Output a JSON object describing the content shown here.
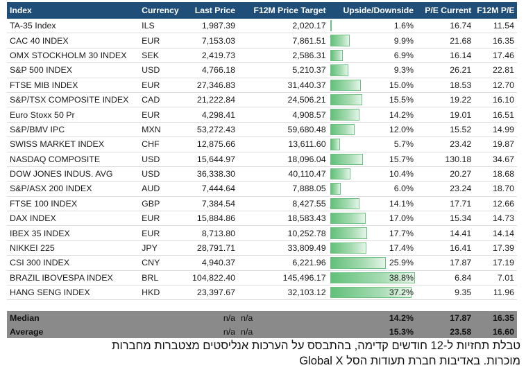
{
  "table": {
    "headers": [
      "Index",
      "Currency",
      "Last Price",
      "F12M Price Target",
      "Upside/Downside",
      "P/E Current",
      "F12M P/E"
    ],
    "rows": [
      {
        "index": "TA-35 Index",
        "currency": "ILS",
        "last": "1,987.39",
        "target": "2,020.17",
        "upside": "1.6%",
        "upside_pct": 1.6,
        "pe": "16.74",
        "fpe": "11.54"
      },
      {
        "index": "CAC 40 INDEX",
        "currency": "EUR",
        "last": "7,153.03",
        "target": "7,861.51",
        "upside": "9.9%",
        "upside_pct": 9.9,
        "pe": "21.68",
        "fpe": "16.35"
      },
      {
        "index": "OMX STOCKHOLM 30 INDEX",
        "currency": "SEK",
        "last": "2,419.73",
        "target": "2,586.31",
        "upside": "6.9%",
        "upside_pct": 6.9,
        "pe": "16.14",
        "fpe": "17.46"
      },
      {
        "index": "S&P 500 INDEX",
        "currency": "USD",
        "last": "4,766.18",
        "target": "5,210.37",
        "upside": "9.3%",
        "upside_pct": 9.3,
        "pe": "26.21",
        "fpe": "22.81"
      },
      {
        "index": "FTSE MIB INDEX",
        "currency": "EUR",
        "last": "27,346.83",
        "target": "31,440.37",
        "upside": "15.0%",
        "upside_pct": 15.0,
        "pe": "18.53",
        "fpe": "12.70"
      },
      {
        "index": "S&P/TSX COMPOSITE INDEX",
        "currency": "CAD",
        "last": "21,222.84",
        "target": "24,506.21",
        "upside": "15.5%",
        "upside_pct": 15.5,
        "pe": "19.22",
        "fpe": "16.10"
      },
      {
        "index": "Euro Stoxx 50 Pr",
        "currency": "EUR",
        "last": "4,298.41",
        "target": "4,908.57",
        "upside": "14.2%",
        "upside_pct": 14.2,
        "pe": "19.01",
        "fpe": "16.51"
      },
      {
        "index": "S&P/BMV IPC",
        "currency": "MXN",
        "last": "53,272.43",
        "target": "59,680.48",
        "upside": "12.0%",
        "upside_pct": 12.0,
        "pe": "15.52",
        "fpe": "14.99"
      },
      {
        "index": "SWISS MARKET INDEX",
        "currency": "CHF",
        "last": "12,875.66",
        "target": "13,611.60",
        "upside": "5.7%",
        "upside_pct": 5.7,
        "pe": "23.42",
        "fpe": "19.87"
      },
      {
        "index": "NASDAQ COMPOSITE",
        "currency": "USD",
        "last": "15,644.97",
        "target": "18,096.04",
        "upside": "15.7%",
        "upside_pct": 15.7,
        "pe": "130.18",
        "fpe": "34.67"
      },
      {
        "index": "DOW JONES INDUS. AVG",
        "currency": "USD",
        "last": "36,338.30",
        "target": "40,110.47",
        "upside": "10.4%",
        "upside_pct": 10.4,
        "pe": "20.27",
        "fpe": "18.68"
      },
      {
        "index": "S&P/ASX 200 INDEX",
        "currency": "AUD",
        "last": "7,444.64",
        "target": "7,888.05",
        "upside": "6.0%",
        "upside_pct": 6.0,
        "pe": "23.24",
        "fpe": "18.70"
      },
      {
        "index": "FTSE 100 INDEX",
        "currency": "GBP",
        "last": "7,384.54",
        "target": "8,427.55",
        "upside": "14.1%",
        "upside_pct": 14.1,
        "pe": "17.71",
        "fpe": "12.66"
      },
      {
        "index": "DAX INDEX",
        "currency": "EUR",
        "last": "15,884.86",
        "target": "18,583.43",
        "upside": "17.0%",
        "upside_pct": 17.0,
        "pe": "15.34",
        "fpe": "14.73"
      },
      {
        "index": "IBEX 35 INDEX",
        "currency": "EUR",
        "last": "8,713.80",
        "target": "10,252.78",
        "upside": "17.7%",
        "upside_pct": 17.7,
        "pe": "14.41",
        "fpe": "14.14"
      },
      {
        "index": "NIKKEI 225",
        "currency": "JPY",
        "last": "28,791.71",
        "target": "33,809.49",
        "upside": "17.4%",
        "upside_pct": 17.4,
        "pe": "16.41",
        "fpe": "17.39"
      },
      {
        "index": "CSI 300 INDEX",
        "currency": "CNY",
        "last": "4,940.37",
        "target": "6,221.96",
        "upside": "25.9%",
        "upside_pct": 25.9,
        "pe": "17.87",
        "fpe": "17.19"
      },
      {
        "index": "BRAZIL IBOVESPA INDEX",
        "currency": "BRL",
        "last": "104,822.40",
        "target": "145,496.17",
        "upside": "38.8%",
        "upside_pct": 38.8,
        "pe": "6.84",
        "fpe": "7.01"
      },
      {
        "index": "HANG SENG INDEX",
        "currency": "HKD",
        "last": "23,397.67",
        "target": "32,103.12",
        "upside": "37.2%",
        "upside_pct": 37.2,
        "pe": "9.35",
        "fpe": "11.96"
      }
    ],
    "bar_max_pct": 38.8,
    "summary": [
      {
        "label": "Median",
        "last": "n/a",
        "target": "n/a",
        "upside": "14.2%",
        "pe": "17.87",
        "fpe": "16.35"
      },
      {
        "label": "Average",
        "last": "n/a",
        "target": "n/a",
        "upside": "15.3%",
        "pe": "23.58",
        "fpe": "16.60"
      }
    ]
  },
  "caption": {
    "line1": "טבלת תחזיות ל-12 חודשים קדימה, בהתבסס על הערכות אנליסטים מצטברות מחברות",
    "line2": "מוכרות. באדיבות חברת תעודות הסל Global X"
  },
  "colors": {
    "header_bg": "#1f4e79",
    "summary_bg": "#8a8a8a",
    "bar": "#62c07a"
  }
}
